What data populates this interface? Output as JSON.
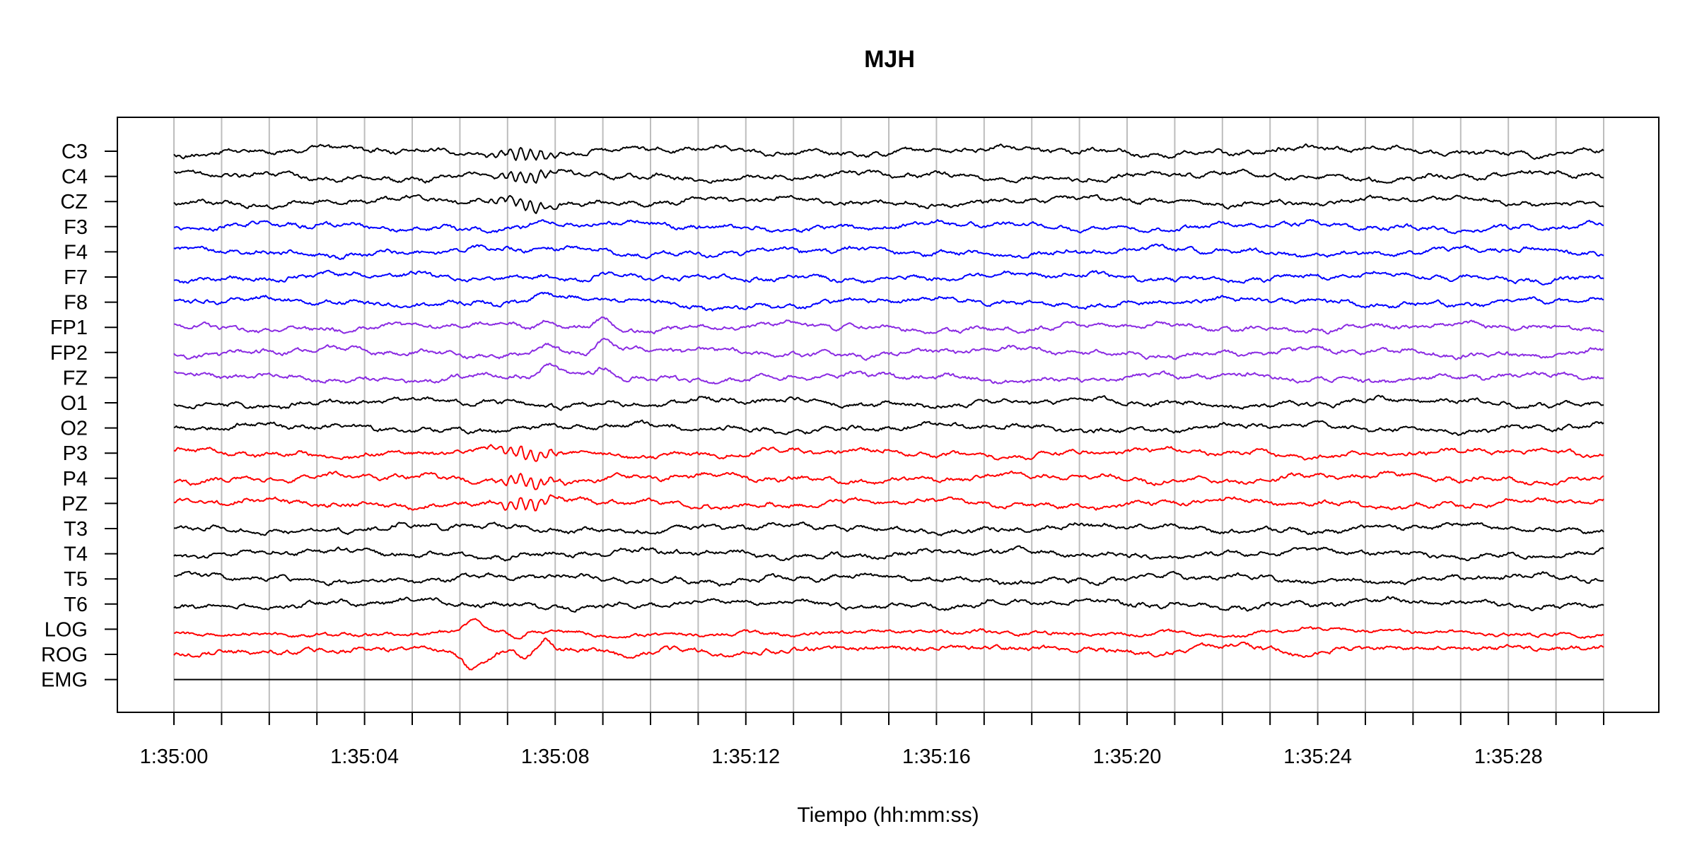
{
  "chart_data": {
    "type": "line",
    "title": "MJH",
    "xlabel": "Tiempo (hh:mm:ss)",
    "ylabel": "",
    "xlim": [
      0,
      30
    ],
    "x_tick_values": [
      0,
      4,
      8,
      12,
      16,
      20,
      24,
      28
    ],
    "x_tick_labels": [
      "1:35:00",
      "1:35:04",
      "1:35:08",
      "1:35:12",
      "1:35:16",
      "1:35:20",
      "1:35:24",
      "1:35:28"
    ],
    "second_gridlines": true,
    "grid_color": "#bdbdbd",
    "channels": [
      {
        "name": "C3",
        "color": "#000000"
      },
      {
        "name": "C4",
        "color": "#000000"
      },
      {
        "name": "CZ",
        "color": "#000000"
      },
      {
        "name": "F3",
        "color": "#0000ff"
      },
      {
        "name": "F4",
        "color": "#0000ff"
      },
      {
        "name": "F7",
        "color": "#0000ff"
      },
      {
        "name": "F8",
        "color": "#0000ff"
      },
      {
        "name": "FP1",
        "color": "#8a2be2"
      },
      {
        "name": "FP2",
        "color": "#8a2be2"
      },
      {
        "name": "FZ",
        "color": "#8a2be2"
      },
      {
        "name": "O1",
        "color": "#000000"
      },
      {
        "name": "O2",
        "color": "#000000"
      },
      {
        "name": "P3",
        "color": "#ff0000"
      },
      {
        "name": "P4",
        "color": "#ff0000"
      },
      {
        "name": "PZ",
        "color": "#ff0000"
      },
      {
        "name": "T3",
        "color": "#000000"
      },
      {
        "name": "T4",
        "color": "#000000"
      },
      {
        "name": "T5",
        "color": "#000000"
      },
      {
        "name": "T6",
        "color": "#000000"
      },
      {
        "name": "LOG",
        "color": "#ff0000"
      },
      {
        "name": "ROG",
        "color": "#ff0000"
      },
      {
        "name": "EMG",
        "color": "#000000"
      }
    ]
  }
}
